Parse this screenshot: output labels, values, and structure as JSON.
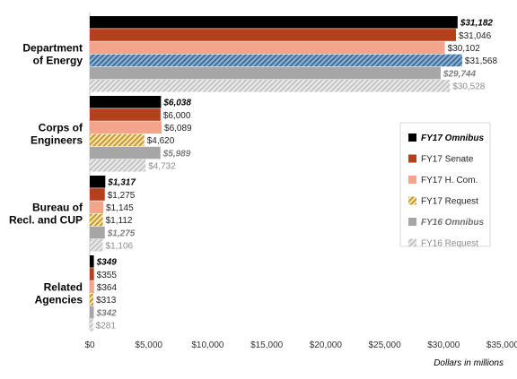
{
  "chart_data": {
    "type": "bar",
    "orientation": "horizontal",
    "categories": [
      "Department of Energy",
      "Corps of Engineers",
      "Bureau of Recl. and CUP",
      "Related Agencies"
    ],
    "category_label_lines": [
      [
        "Department",
        "of Energy"
      ],
      [
        "Corps of",
        "Engineers"
      ],
      [
        "Bureau of",
        "Recl. and CUP"
      ],
      [
        "Related",
        "Agencies"
      ]
    ],
    "series": [
      {
        "name": "FY17 Omnibus",
        "values": [
          31182,
          6038,
          1317,
          349
        ],
        "labels": [
          "$31,182",
          "$6,038",
          "$1,317",
          "$349"
        ],
        "color": "#000000",
        "pattern": "solid",
        "emphasis": "bold-italic",
        "label_color": "#000000"
      },
      {
        "name": "FY17 Senate",
        "values": [
          31046,
          6000,
          1275,
          355
        ],
        "labels": [
          "$31,046",
          "$6,000",
          "$1,275",
          "$355"
        ],
        "color": "#b5401e",
        "pattern": "solid",
        "emphasis": "normal",
        "label_color": "#222222"
      },
      {
        "name": "FY17 H. Com.",
        "values": [
          30102,
          6089,
          1145,
          364
        ],
        "labels": [
          "$30,102",
          "$6,089",
          "$1,145",
          "$364"
        ],
        "color": "#f2a58a",
        "pattern": "solid",
        "emphasis": "normal",
        "label_color": "#222222"
      },
      {
        "name": "FY17 Request",
        "values": [
          31568,
          4620,
          1112,
          313
        ],
        "labels": [
          "$31,568",
          "$4,620",
          "$1,112",
          "$313"
        ],
        "color": "#d6a53a",
        "pattern": "hatch",
        "emphasis": "normal",
        "label_color": "#222222"
      },
      {
        "name": "FY16 Omnibus",
        "values": [
          29744,
          5989,
          1275,
          342
        ],
        "labels": [
          "$29,744",
          "$5,989",
          "$1,275",
          "$342"
        ],
        "color": "#a6a6a6",
        "pattern": "solid",
        "emphasis": "bold-italic",
        "label_color": "#7f7f7f"
      },
      {
        "name": "FY16 Request",
        "values": [
          30528,
          4732,
          1106,
          281
        ],
        "labels": [
          "$30,528",
          "$4,732",
          "$1,106",
          "$281"
        ],
        "color": "#d0d0d0",
        "pattern": "hatch-light",
        "emphasis": "normal",
        "label_color": "#8c8c8c"
      }
    ],
    "special_bar_fills": [
      {
        "series": 3,
        "category": 0,
        "color": "#4f7ea8",
        "pattern": "hatch"
      }
    ],
    "xlim": [
      0,
      35000
    ],
    "xticks": [
      0,
      5000,
      10000,
      15000,
      20000,
      25000,
      30000,
      35000
    ],
    "xtick_labels": [
      "$0",
      "$5,000",
      "$10,000",
      "$15,000",
      "$20,000",
      "$25,000",
      "$30,000",
      "$35,000"
    ],
    "xlabel": "Dollars in millions",
    "ylabel": "",
    "title": "",
    "grid": false,
    "legend_position": "right"
  }
}
